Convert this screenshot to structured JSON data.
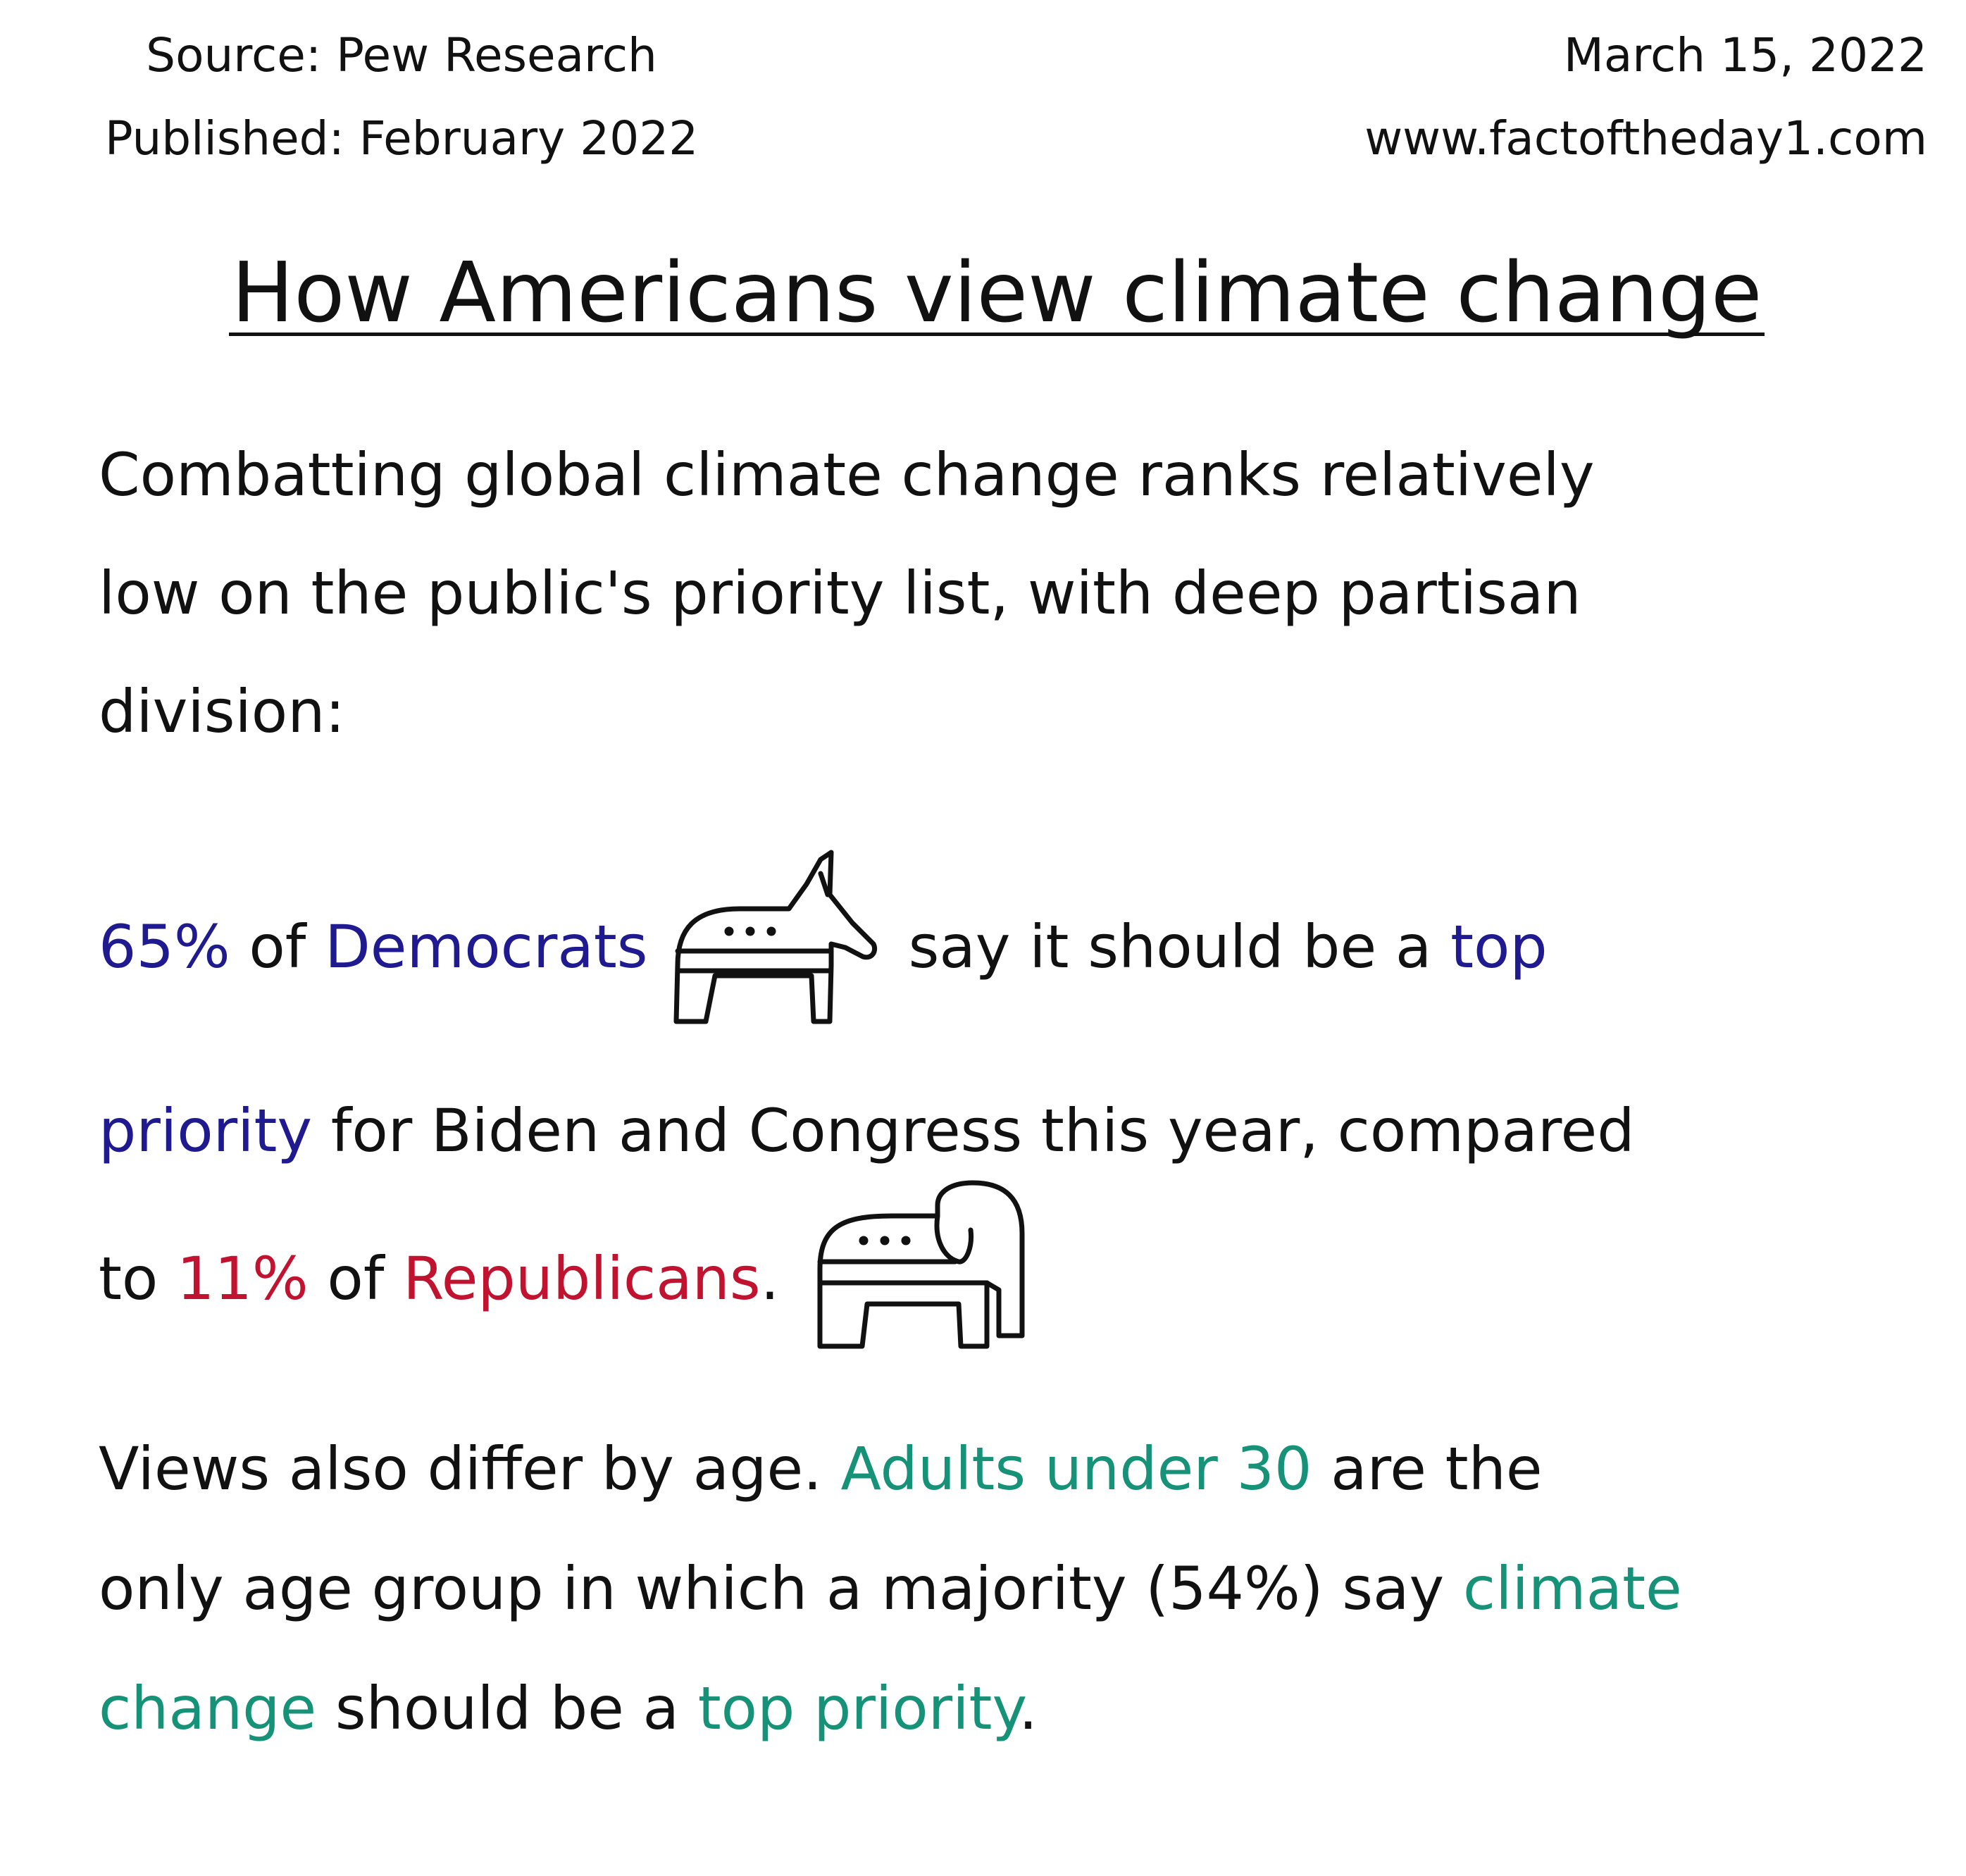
{
  "header": {
    "source": "Source: Pew Research",
    "published": "Published: February 2022",
    "date": "March 15, 2022",
    "website": "www.factoftheday1.com"
  },
  "title": "How Americans view climate change",
  "intro": {
    "line1": "Combatting global climate change ranks relatively",
    "line2": "low on the public's priority list, with deep partisan",
    "line3": "division:"
  },
  "party": {
    "dem_percent": "65%",
    "of_1": " of ",
    "democrats": "Democrats",
    "say_should_be": "say it should be a ",
    "top": "top",
    "priority": "priority",
    "for_biden": " for Biden and Congress this year, compared",
    "to": "to ",
    "rep_percent": "11%",
    "of_2": " of ",
    "republicans": "Republicans",
    "period": "."
  },
  "age": {
    "views_differ": "Views also differ by age. ",
    "adults_under_30": "Adults under 30",
    "are_the": " are the",
    "only_age_group": "only age group in which a majority (54%) say ",
    "climate": "climate",
    "change": "change",
    "should_be": " should be a ",
    "top_priority": "top priority",
    "period": "."
  },
  "icons": {
    "donkey": "donkey-icon",
    "elephant": "elephant-icon"
  },
  "colors": {
    "democrats": "#1f1a8f",
    "republicans": "#c1122f",
    "age_highlight": "#159277",
    "text": "#111111"
  }
}
